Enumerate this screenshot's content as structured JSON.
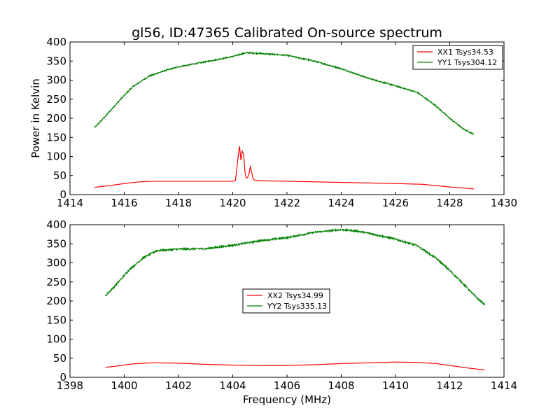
{
  "figure": {
    "title": "gl56, ID:47365 Calibrated On-source spectrum"
  },
  "chart_data": [
    {
      "type": "line",
      "xlabel": "",
      "ylabel": "Power in Kelvin",
      "xlim": [
        1414,
        1430
      ],
      "ylim": [
        0,
        400
      ],
      "xticks": [
        "1414",
        "1416",
        "1418",
        "1420",
        "1422",
        "1424",
        "1426",
        "1428",
        "1430"
      ],
      "yticks": [
        "0",
        "50",
        "100",
        "150",
        "200",
        "250",
        "300",
        "350",
        "400"
      ],
      "legend_position": "top-right",
      "series": [
        {
          "name": "XX1 Tsys34.53",
          "color": "#ff0000",
          "noise": 0,
          "x": [
            1414.9,
            1415.5,
            1416.0,
            1416.5,
            1417.0,
            1418.0,
            1419.0,
            1420.0,
            1420.1,
            1420.2,
            1420.25,
            1420.3,
            1420.35,
            1420.4,
            1420.45,
            1420.5,
            1420.55,
            1420.6,
            1420.65,
            1420.7,
            1420.75,
            1420.8,
            1420.9,
            1421.2,
            1422.0,
            1424.0,
            1426.0,
            1427.0,
            1428.0,
            1428.9
          ],
          "values": [
            19,
            24,
            29,
            33,
            35,
            35,
            35,
            35,
            37,
            100,
            128,
            90,
            115,
            105,
            60,
            43,
            45,
            55,
            74,
            58,
            42,
            38,
            37,
            36,
            35,
            32,
            29,
            27,
            20,
            15
          ]
        },
        {
          "name": "YY1 Tsys304.12",
          "color": "#008000",
          "noise": 1.6,
          "x": [
            1414.9,
            1415.3,
            1415.8,
            1416.3,
            1416.9,
            1417.5,
            1418.0,
            1419.0,
            1420.0,
            1420.5,
            1421.0,
            1422.0,
            1423.0,
            1424.0,
            1425.0,
            1426.0,
            1426.8,
            1427.5,
            1428.0,
            1428.5,
            1428.9
          ],
          "values": [
            175,
            205,
            245,
            282,
            310,
            325,
            335,
            348,
            362,
            372,
            370,
            365,
            350,
            330,
            305,
            285,
            268,
            232,
            200,
            172,
            158
          ]
        }
      ]
    },
    {
      "type": "line",
      "xlabel": "Frequency (MHz)",
      "ylabel": "",
      "xlim": [
        1398,
        1414
      ],
      "ylim": [
        0,
        400
      ],
      "xticks": [
        "1398",
        "1400",
        "1402",
        "1404",
        "1406",
        "1408",
        "1410",
        "1412",
        "1414"
      ],
      "yticks": [
        "0",
        "50",
        "100",
        "150",
        "200",
        "250",
        "300",
        "350",
        "400"
      ],
      "legend_position": "center",
      "series": [
        {
          "name": "XX2 Tsys34.99",
          "color": "#ff0000",
          "noise": 0,
          "x": [
            1399.3,
            1399.8,
            1400.3,
            1401.0,
            1402.0,
            1403.0,
            1404.0,
            1405.0,
            1406.0,
            1407.0,
            1408.0,
            1409.0,
            1410.0,
            1410.8,
            1411.5,
            1412.0,
            1412.6,
            1413.3
          ],
          "values": [
            26,
            30,
            35,
            38,
            37,
            34,
            32,
            31,
            31,
            33,
            36,
            38,
            40,
            39,
            36,
            31,
            25,
            19
          ]
        },
        {
          "name": "YY2 Tsys335.13",
          "color": "#008000",
          "noise": 2.2,
          "x": [
            1399.3,
            1399.7,
            1400.2,
            1400.7,
            1401.2,
            1402.0,
            1403.0,
            1404.0,
            1405.0,
            1406.0,
            1407.0,
            1408.0,
            1408.5,
            1409.0,
            1410.0,
            1410.8,
            1411.5,
            1412.0,
            1412.5,
            1413.0,
            1413.3
          ],
          "values": [
            213,
            243,
            283,
            313,
            332,
            336,
            337,
            346,
            358,
            366,
            380,
            387,
            384,
            378,
            362,
            345,
            312,
            280,
            245,
            208,
            190
          ]
        }
      ]
    }
  ]
}
